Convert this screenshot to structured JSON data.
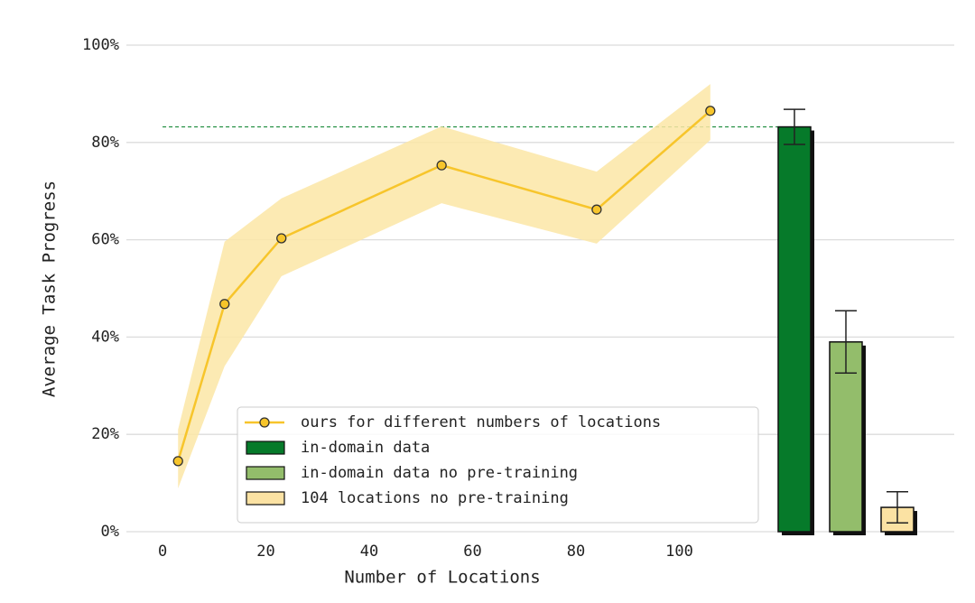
{
  "chart_data": {
    "type": "line",
    "xlabel": "Number of Locations",
    "ylabel": "Average Task Progress",
    "xlim": [
      -7,
      153.2
    ],
    "ylim": [
      0,
      100
    ],
    "xticks": [
      0,
      20,
      40,
      60,
      80,
      100
    ],
    "yticks": [
      {
        "value": 0,
        "label": "0%"
      },
      {
        "value": 20,
        "label": "20%"
      },
      {
        "value": 40,
        "label": "40%"
      },
      {
        "value": 60,
        "label": "60%"
      },
      {
        "value": 80,
        "label": "80%"
      },
      {
        "value": 100,
        "label": "100%"
      }
    ],
    "grid": "y",
    "legend": "lower center",
    "series": [
      {
        "name": "ours for different numbers of locations",
        "color": "#f7c52b",
        "band_color": "#fbe6a6",
        "x": [
          3,
          12,
          23,
          54,
          84,
          106
        ],
        "values": [
          14.5,
          46.8,
          60.3,
          75.3,
          66.2,
          86.5
        ],
        "lower": [
          8.9,
          34,
          52.5,
          67.5,
          59.2,
          80.5
        ],
        "upper": [
          21,
          59.6,
          68.5,
          83.3,
          74,
          92
        ]
      }
    ],
    "bars": [
      {
        "name": "in-domain data",
        "color": "#067a2a",
        "value": 83.2,
        "error": 3.6
      },
      {
        "name": "in-domain data no pre-training",
        "color": "#93bd6b",
        "value": 39,
        "error": 6.4
      },
      {
        "name": "104 locations no pre-training",
        "color": "#fbe2a3",
        "value": 5,
        "error": 3.2
      }
    ]
  }
}
